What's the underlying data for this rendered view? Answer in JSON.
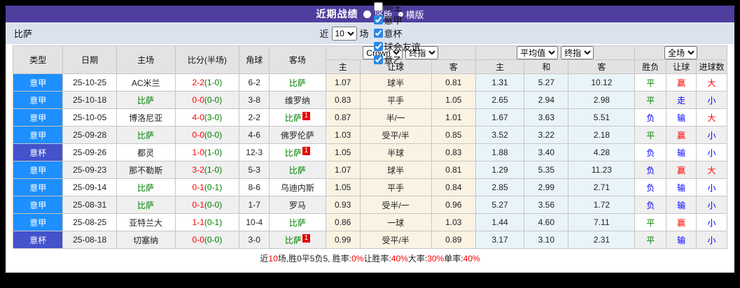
{
  "title_bar": {
    "title": "近期战绩",
    "radio_options": [
      {
        "label": "竖版",
        "selected": true
      },
      {
        "label": "横版",
        "selected": false
      }
    ]
  },
  "filter_bar": {
    "team": "比萨",
    "recent_label": "近",
    "recent_value": "10",
    "matches_label": "场",
    "checkboxes": [
      {
        "label": "同主",
        "checked": false
      },
      {
        "label": "意甲",
        "checked": true
      },
      {
        "label": "意杯",
        "checked": true
      },
      {
        "label": "球会友谊",
        "checked": true
      },
      {
        "label": "意乙",
        "checked": true
      }
    ]
  },
  "colors": {
    "accent_purple": "#4f3e9e",
    "serie_a_badge": "#1d8fff",
    "cup_badge": "#4452cc",
    "team_green": "#008000",
    "win_red": "#ff0000",
    "lose_blue": "#0000ff",
    "handicap_bg": "#faf3e3",
    "europe_bg": "#e9f4f9"
  },
  "table": {
    "selects": {
      "odds_source": "Crown",
      "odds_time": "终指",
      "europe_type": "平均值",
      "europe_time": "终指",
      "result_scope": "全场"
    },
    "columns": [
      "类型",
      "日期",
      "主场",
      "比分(半场)",
      "角球",
      "客场",
      "主",
      "让球",
      "客",
      "主",
      "和",
      "客",
      "胜负",
      "让球",
      "进球数"
    ],
    "rows": [
      {
        "league": "意甲",
        "league_type": "league",
        "date": "25-10-25",
        "home": "AC米兰",
        "home_team": false,
        "home_rc": "",
        "ft": "2-2",
        "ht": "(1-0)",
        "corners": "6-2",
        "away": "比萨",
        "away_team": true,
        "away_rc": "",
        "ah": [
          "1.07",
          "球半",
          "0.81"
        ],
        "eu": [
          "1.31",
          "5.27",
          "10.12"
        ],
        "res": [
          "平",
          "赢",
          "大"
        ],
        "res_c": [
          "g",
          "r",
          "r"
        ]
      },
      {
        "league": "意甲",
        "league_type": "league",
        "date": "25-10-18",
        "home": "比萨",
        "home_team": true,
        "home_rc": "",
        "ft": "0-0",
        "ht": "(0-0)",
        "corners": "3-8",
        "away": "维罗纳",
        "away_team": false,
        "away_rc": "",
        "ah": [
          "0.83",
          "平手",
          "1.05"
        ],
        "eu": [
          "2.65",
          "2.94",
          "2.98"
        ],
        "res": [
          "平",
          "走",
          "小"
        ],
        "res_c": [
          "g",
          "b",
          "b"
        ]
      },
      {
        "league": "意甲",
        "league_type": "league",
        "date": "25-10-05",
        "home": "博洛尼亚",
        "home_team": false,
        "home_rc": "",
        "ft": "4-0",
        "ht": "(3-0)",
        "corners": "2-2",
        "away": "比萨",
        "away_team": true,
        "away_rc": "1",
        "ah": [
          "0.87",
          "半/一",
          "1.01"
        ],
        "eu": [
          "1.67",
          "3.63",
          "5.51"
        ],
        "res": [
          "负",
          "输",
          "大"
        ],
        "res_c": [
          "b",
          "b",
          "r"
        ]
      },
      {
        "league": "意甲",
        "league_type": "league",
        "date": "25-09-28",
        "home": "比萨",
        "home_team": true,
        "home_rc": "",
        "ft": "0-0",
        "ht": "(0-0)",
        "corners": "4-6",
        "away": "佛罗伦萨",
        "away_team": false,
        "away_rc": "",
        "ah": [
          "1.03",
          "受平/半",
          "0.85"
        ],
        "eu": [
          "3.52",
          "3.22",
          "2.18"
        ],
        "res": [
          "平",
          "赢",
          "小"
        ],
        "res_c": [
          "g",
          "r",
          "b"
        ]
      },
      {
        "league": "意杯",
        "league_type": "cup",
        "date": "25-09-26",
        "home": "都灵",
        "home_team": false,
        "home_rc": "",
        "ft": "1-0",
        "ht": "(1-0)",
        "corners": "12-3",
        "away": "比萨",
        "away_team": true,
        "away_rc": "1",
        "ah": [
          "1.05",
          "半球",
          "0.83"
        ],
        "eu": [
          "1.88",
          "3.40",
          "4.28"
        ],
        "res": [
          "负",
          "输",
          "小"
        ],
        "res_c": [
          "b",
          "b",
          "b"
        ]
      },
      {
        "league": "意甲",
        "league_type": "league",
        "date": "25-09-23",
        "home": "那不勒斯",
        "home_team": false,
        "home_rc": "",
        "ft": "3-2",
        "ht": "(1-0)",
        "corners": "5-3",
        "away": "比萨",
        "away_team": true,
        "away_rc": "",
        "ah": [
          "1.07",
          "球半",
          "0.81"
        ],
        "eu": [
          "1.29",
          "5.35",
          "11.23"
        ],
        "res": [
          "负",
          "赢",
          "大"
        ],
        "res_c": [
          "b",
          "r",
          "r"
        ]
      },
      {
        "league": "意甲",
        "league_type": "league",
        "date": "25-09-14",
        "home": "比萨",
        "home_team": true,
        "home_rc": "",
        "ft": "0-1",
        "ht": "(0-1)",
        "corners": "8-6",
        "away": "乌迪内斯",
        "away_team": false,
        "away_rc": "",
        "ah": [
          "1.05",
          "平手",
          "0.84"
        ],
        "eu": [
          "2.85",
          "2.99",
          "2.71"
        ],
        "res": [
          "负",
          "输",
          "小"
        ],
        "res_c": [
          "b",
          "b",
          "b"
        ]
      },
      {
        "league": "意甲",
        "league_type": "league",
        "date": "25-08-31",
        "home": "比萨",
        "home_team": true,
        "home_rc": "",
        "ft": "0-1",
        "ht": "(0-0)",
        "corners": "1-7",
        "away": "罗马",
        "away_team": false,
        "away_rc": "",
        "ah": [
          "0.93",
          "受半/一",
          "0.96"
        ],
        "eu": [
          "5.27",
          "3.56",
          "1.72"
        ],
        "res": [
          "负",
          "输",
          "小"
        ],
        "res_c": [
          "b",
          "b",
          "b"
        ]
      },
      {
        "league": "意甲",
        "league_type": "league",
        "date": "25-08-25",
        "home": "亚特兰大",
        "home_team": false,
        "home_rc": "",
        "ft": "1-1",
        "ht": "(0-1)",
        "corners": "10-4",
        "away": "比萨",
        "away_team": true,
        "away_rc": "",
        "ah": [
          "0.86",
          "一球",
          "1.03"
        ],
        "eu": [
          "1.44",
          "4.60",
          "7.11"
        ],
        "res": [
          "平",
          "赢",
          "小"
        ],
        "res_c": [
          "g",
          "r",
          "b"
        ]
      },
      {
        "league": "意杯",
        "league_type": "cup",
        "date": "25-08-18",
        "home": "切塞纳",
        "home_team": false,
        "home_rc": "",
        "ft": "0-0",
        "ht": "(0-0)",
        "corners": "3-0",
        "away": "比萨",
        "away_team": true,
        "away_rc": "1",
        "ah": [
          "0.99",
          "受平/半",
          "0.89"
        ],
        "eu": [
          "3.17",
          "3.10",
          "2.31"
        ],
        "res": [
          "平",
          "输",
          "小"
        ],
        "res_c": [
          "g",
          "b",
          "b"
        ]
      }
    ]
  },
  "footer": {
    "segments": [
      {
        "t": "近",
        "red": false
      },
      {
        "t": "10",
        "red": true
      },
      {
        "t": "场,胜0平5负5, 胜率:",
        "red": false
      },
      {
        "t": "0%",
        "red": true
      },
      {
        "t": " 让胜率:",
        "red": false
      },
      {
        "t": "40%",
        "red": true
      },
      {
        "t": " 大率:",
        "red": false
      },
      {
        "t": "30%",
        "red": true
      },
      {
        "t": " 单率:",
        "red": false
      },
      {
        "t": "40%",
        "red": true
      }
    ]
  }
}
